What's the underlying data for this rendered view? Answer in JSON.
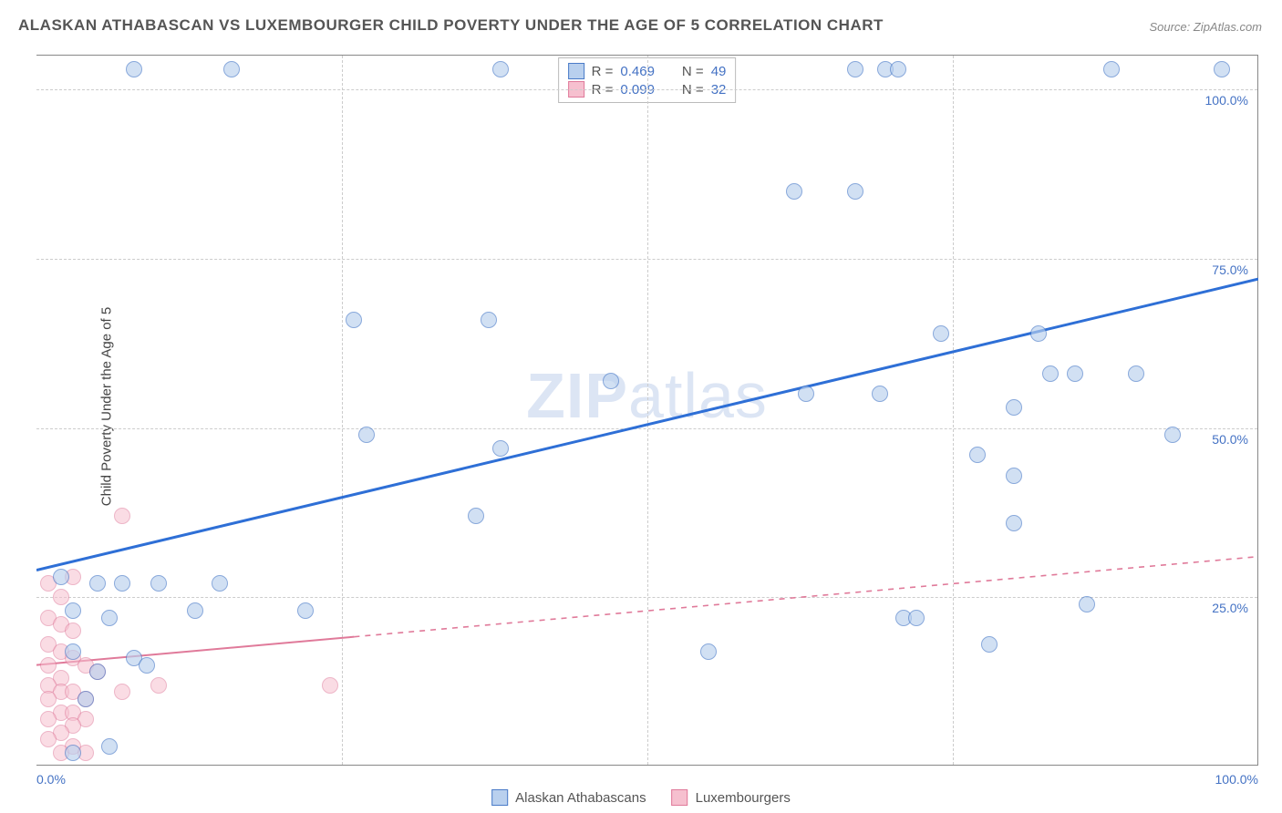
{
  "title": "ALASKAN ATHABASCAN VS LUXEMBOURGER CHILD POVERTY UNDER THE AGE OF 5 CORRELATION CHART",
  "source": "Source: ZipAtlas.com",
  "ylabel": "Child Poverty Under the Age of 5",
  "watermark": {
    "bold": "ZIP",
    "rest": "atlas"
  },
  "chart": {
    "type": "scatter",
    "xlim": [
      0,
      100
    ],
    "ylim": [
      0,
      105
    ],
    "background_color": "#ffffff",
    "grid_color": "#cccccc",
    "grid_dash": "4,4",
    "yticks": [
      25,
      50,
      75,
      100
    ],
    "ytick_labels": [
      "25.0%",
      "50.0%",
      "75.0%",
      "100.0%"
    ],
    "xticks": [
      0,
      25,
      50,
      75,
      100
    ],
    "xtick_labels_shown": {
      "0": "0.0%",
      "100": "100.0%"
    },
    "ytick_label_color": "#4472c4",
    "xtick_label_color": "#4472c4",
    "marker_radius": 9,
    "marker_border_width": 1,
    "series": [
      {
        "name": "Alaskan Athabascans",
        "fill": "#b9d0ee",
        "fill_opacity": 0.65,
        "stroke": "#4a7bc8",
        "R": "0.469",
        "N": "49",
        "trend": {
          "x1": 0,
          "y1": 29,
          "x2": 100,
          "y2": 72,
          "color": "#2e6fd6",
          "width": 3,
          "solid_until_x": 100
        },
        "points": [
          [
            8,
            103
          ],
          [
            16,
            103
          ],
          [
            38,
            103
          ],
          [
            67,
            103
          ],
          [
            69.5,
            103
          ],
          [
            70.5,
            103
          ],
          [
            88,
            103
          ],
          [
            97,
            103
          ],
          [
            62,
            85
          ],
          [
            67,
            85
          ],
          [
            26,
            66
          ],
          [
            37,
            66
          ],
          [
            74,
            64
          ],
          [
            82,
            64
          ],
          [
            47,
            57
          ],
          [
            83,
            58
          ],
          [
            85,
            58
          ],
          [
            90,
            58
          ],
          [
            63,
            55
          ],
          [
            69,
            55
          ],
          [
            80,
            53
          ],
          [
            27,
            49
          ],
          [
            38,
            47
          ],
          [
            77,
            46
          ],
          [
            80,
            43
          ],
          [
            93,
            49
          ],
          [
            36,
            37
          ],
          [
            80,
            36
          ],
          [
            2,
            28
          ],
          [
            5,
            27
          ],
          [
            7,
            27
          ],
          [
            10,
            27
          ],
          [
            15,
            27
          ],
          [
            71,
            22
          ],
          [
            72,
            22
          ],
          [
            78,
            18
          ],
          [
            3,
            23
          ],
          [
            6,
            22
          ],
          [
            13,
            23
          ],
          [
            22,
            23
          ],
          [
            86,
            24
          ],
          [
            55,
            17
          ],
          [
            3,
            17
          ],
          [
            5,
            14
          ],
          [
            8,
            16
          ],
          [
            9,
            15
          ],
          [
            4,
            10
          ],
          [
            6,
            3
          ],
          [
            3,
            2
          ]
        ]
      },
      {
        "name": "Luxembourgers",
        "fill": "#f6c0cf",
        "fill_opacity": 0.55,
        "stroke": "#e07a9a",
        "R": "0.099",
        "N": "32",
        "trend": {
          "x1": 0,
          "y1": 15,
          "x2": 100,
          "y2": 31,
          "color": "#e07a9a",
          "width": 2,
          "solid_until_x": 26
        },
        "points": [
          [
            7,
            37
          ],
          [
            3,
            28
          ],
          [
            1,
            27
          ],
          [
            2,
            25
          ],
          [
            1,
            22
          ],
          [
            2,
            21
          ],
          [
            3,
            20
          ],
          [
            1,
            18
          ],
          [
            2,
            17
          ],
          [
            3,
            16
          ],
          [
            1,
            15
          ],
          [
            4,
            15
          ],
          [
            2,
            13
          ],
          [
            5,
            14
          ],
          [
            1,
            12
          ],
          [
            2,
            11
          ],
          [
            3,
            11
          ],
          [
            1,
            10
          ],
          [
            4,
            10
          ],
          [
            7,
            11
          ],
          [
            10,
            12
          ],
          [
            2,
            8
          ],
          [
            3,
            8
          ],
          [
            1,
            7
          ],
          [
            4,
            7
          ],
          [
            3,
            6
          ],
          [
            2,
            5
          ],
          [
            1,
            4
          ],
          [
            3,
            3
          ],
          [
            2,
            2
          ],
          [
            4,
            2
          ],
          [
            24,
            12
          ]
        ]
      }
    ],
    "stats_labels": {
      "R": "R =",
      "N": "N ="
    },
    "legend_bottom": [
      "Alaskan Athabascans",
      "Luxembourgers"
    ]
  }
}
